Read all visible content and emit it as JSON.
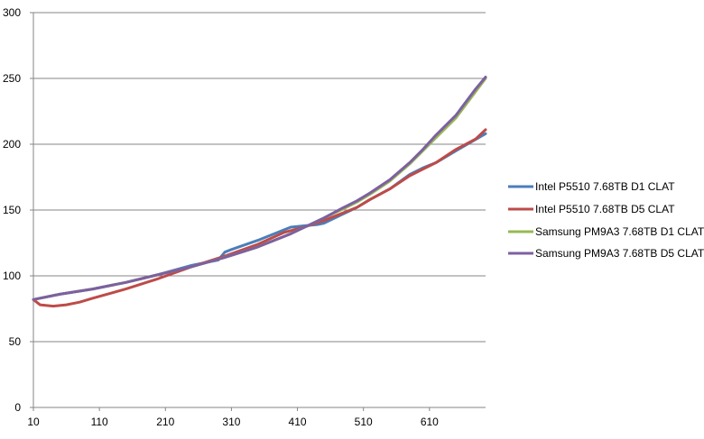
{
  "chart_data": {
    "type": "line",
    "title": "",
    "xlabel": "",
    "ylabel": "",
    "xlim": [
      10,
      695
    ],
    "ylim": [
      0,
      300
    ],
    "y_ticks": [
      "0",
      "50",
      "100",
      "150",
      "200",
      "250",
      "300"
    ],
    "x_ticks": [
      {
        "value": 10,
        "label": "10"
      },
      {
        "value": 110,
        "label": "110"
      },
      {
        "value": 210,
        "label": "210"
      },
      {
        "value": 310,
        "label": "310"
      },
      {
        "value": 410,
        "label": "410"
      },
      {
        "value": 510,
        "label": "510"
      },
      {
        "value": 610,
        "label": "610"
      }
    ],
    "grid": {
      "horizontal": true,
      "vertical": false
    },
    "legend_position": "right",
    "series": [
      {
        "name": "Intel P5510 7.68TB D1 CLAT",
        "color": "#4a7ebb",
        "x": [
          10,
          50,
          100,
          150,
          200,
          250,
          290,
          300,
          310,
          350,
          390,
          400,
          420,
          440,
          450,
          500,
          520,
          550,
          580,
          600,
          620,
          650,
          695
        ],
        "y": [
          82,
          86,
          90,
          95,
          101,
          108,
          112,
          118,
          120,
          127,
          135,
          137,
          138,
          139,
          140,
          152,
          158,
          166,
          177,
          182,
          186,
          195,
          208
        ]
      },
      {
        "name": "Intel P5510 7.68TB D5 CLAT",
        "color": "#be4b48",
        "x": [
          10,
          20,
          40,
          60,
          80,
          100,
          150,
          200,
          250,
          300,
          350,
          390,
          420,
          450,
          480,
          500,
          520,
          550,
          580,
          600,
          620,
          650,
          680,
          695
        ],
        "y": [
          82,
          78,
          77,
          78,
          80,
          83,
          90,
          98,
          107,
          115,
          124,
          133,
          137,
          142,
          148,
          152,
          158,
          166,
          176,
          181,
          186,
          196,
          204,
          211
        ]
      },
      {
        "name": "Samsung PM9A3 7.68TB D1 CLAT",
        "color": "#98b954",
        "x": [
          10,
          50,
          100,
          150,
          200,
          250,
          300,
          350,
          400,
          450,
          480,
          500,
          520,
          550,
          580,
          600,
          620,
          650,
          680,
          695
        ],
        "y": [
          82,
          86,
          90,
          95,
          101,
          107,
          114,
          122,
          132,
          144,
          151,
          156,
          162,
          172,
          185,
          195,
          205,
          220,
          240,
          250
        ]
      },
      {
        "name": "Samsung PM9A3 7.68TB D5 CLAT",
        "color": "#7d60a0",
        "x": [
          10,
          50,
          100,
          150,
          200,
          250,
          300,
          350,
          400,
          450,
          480,
          500,
          520,
          550,
          580,
          600,
          620,
          650,
          680,
          695
        ],
        "y": [
          82,
          86,
          90,
          95,
          101,
          107,
          114,
          122,
          132,
          144,
          152,
          157,
          163,
          173,
          186,
          196,
          207,
          222,
          242,
          251
        ]
      }
    ]
  }
}
